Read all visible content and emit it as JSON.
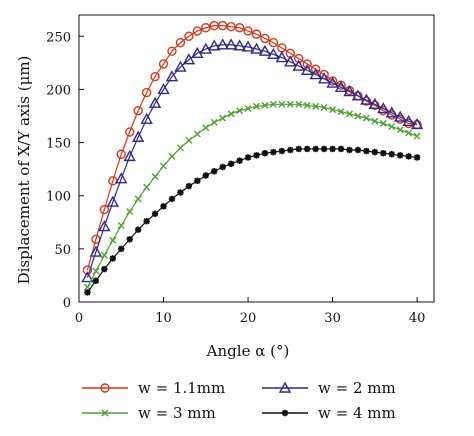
{
  "chart_data": {
    "type": "line",
    "xlabel": "Angle α (°)",
    "ylabel": "Displacement of X/Y axis (μm)",
    "xlim": [
      0,
      42
    ],
    "ylim": [
      0,
      270
    ],
    "xticks": [
      0,
      10,
      20,
      30,
      40
    ],
    "yticks": [
      0,
      50,
      100,
      150,
      200,
      250
    ],
    "grid": false,
    "legend_position": "bottom",
    "x": [
      1,
      2,
      3,
      4,
      5,
      6,
      7,
      8,
      9,
      10,
      11,
      12,
      13,
      14,
      15,
      16,
      17,
      18,
      19,
      20,
      21,
      22,
      23,
      24,
      25,
      26,
      27,
      28,
      29,
      30,
      31,
      32,
      33,
      34,
      35,
      36,
      37,
      38,
      39,
      40
    ],
    "series": [
      {
        "name": "w = 1.1mm",
        "color": "#d03a1e",
        "marker": "circle",
        "values": [
          30,
          59,
          87,
          114,
          139,
          160,
          180,
          197,
          212,
          224,
          236,
          244,
          250,
          255,
          258,
          260,
          260,
          259,
          258,
          255,
          252,
          248,
          244,
          239,
          234,
          229,
          224,
          219,
          214,
          208,
          204,
          199,
          194,
          189,
          185,
          180,
          176,
          172,
          168,
          167
        ]
      },
      {
        "name": "w = 2 mm",
        "color": "#2e2a8c",
        "marker": "triangle",
        "values": [
          23,
          47,
          71,
          94,
          116,
          137,
          155,
          172,
          187,
          200,
          212,
          221,
          228,
          234,
          238,
          241,
          242,
          242,
          241,
          240,
          238,
          236,
          233,
          230,
          226,
          222,
          218,
          214,
          210,
          206,
          202,
          198,
          194,
          190,
          186,
          182,
          178,
          174,
          170,
          167
        ]
      },
      {
        "name": "w = 3 mm",
        "color": "#4da032",
        "marker": "x",
        "values": [
          14,
          29,
          44,
          58,
          72,
          85,
          97,
          108,
          118,
          128,
          137,
          145,
          152,
          158,
          164,
          169,
          173,
          177,
          180,
          182,
          184,
          185,
          186,
          186,
          186,
          186,
          185,
          184,
          183,
          181,
          179,
          177,
          175,
          173,
          170,
          168,
          165,
          162,
          159,
          156
        ]
      },
      {
        "name": "w = 4 mm",
        "color": "#111111",
        "marker": "star",
        "values": [
          9,
          20,
          31,
          41,
          50,
          59,
          68,
          76,
          83,
          90,
          97,
          103,
          109,
          114,
          119,
          123,
          127,
          130,
          133,
          136,
          138,
          140,
          141,
          142,
          143,
          144,
          144,
          144,
          144,
          144,
          144,
          143,
          143,
          142,
          141,
          140,
          139,
          138,
          137,
          136
        ]
      }
    ]
  }
}
